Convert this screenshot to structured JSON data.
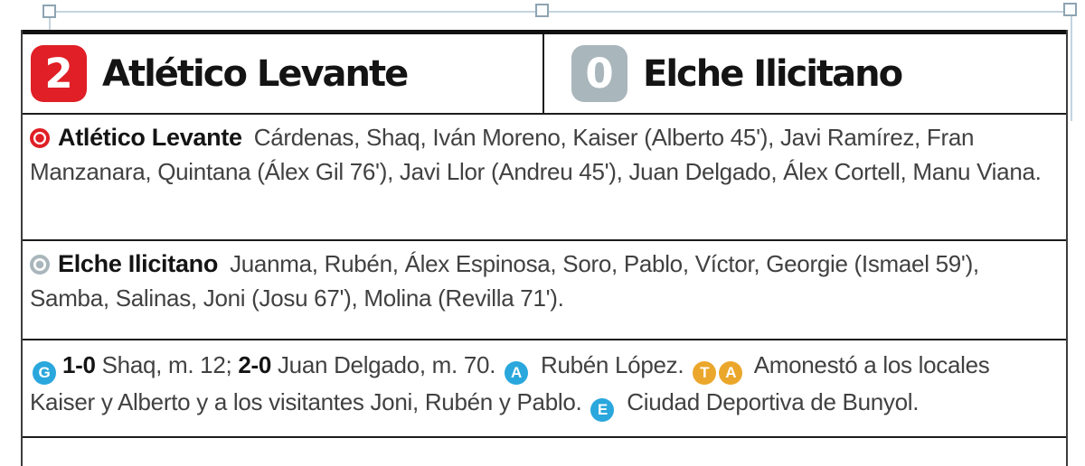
{
  "colors": {
    "home_accent": "#e01f26",
    "away_accent": "#a9b6bc",
    "info_blue": "#2aa7dc",
    "card_amber": "#eba72b"
  },
  "scoreboard": {
    "home": {
      "score": "2",
      "name": "Atlético Levante"
    },
    "away": {
      "score": "0",
      "name": "Elche Ilicitano"
    }
  },
  "lineups": [
    {
      "team": "Atlético Levante",
      "players": "Cárdenas, Shaq, Iván Moreno, Kaiser (Alberto 45'), Javi Ramírez, Fran Manzanara, Quintana (Álex Gil 76'), Javi Llor (Andreu 45'), Juan Delgado, Álex Cortell, Manu Viana."
    },
    {
      "team": "Elche Ilicitano",
      "players": "Juanma, Rubén, Álex Espinosa, Soro, Pablo, Víctor, Georgie (Ismael 59'), Samba, Salinas, Joni (Josu 67'), Molina (Revilla 71')."
    }
  ],
  "facts": {
    "tokens": [
      {
        "icon": "G",
        "color": "blue",
        "name": "goals-icon"
      },
      {
        "text": "1-0",
        "bold": true
      },
      {
        "text": " Shaq, m. 12; "
      },
      {
        "text": "2-0",
        "bold": true
      },
      {
        "text": " Juan Delgado, m. 70. "
      },
      {
        "icon": "A",
        "color": "blue",
        "name": "referee-icon"
      },
      {
        "text": " Rubén López. "
      },
      {
        "icon": "T",
        "color": "amber",
        "name": "yellow-card-t-icon"
      },
      {
        "icon": "A",
        "color": "amber",
        "name": "yellow-card-a-icon"
      },
      {
        "text": " Amonestó a los locales Kaiser y Alberto y a los visitantes Joni, Rubén y Pablo. "
      },
      {
        "icon": "E",
        "color": "blue",
        "name": "stadium-icon"
      },
      {
        "text": " Ciudad Deportiva de Bunyol."
      }
    ]
  }
}
